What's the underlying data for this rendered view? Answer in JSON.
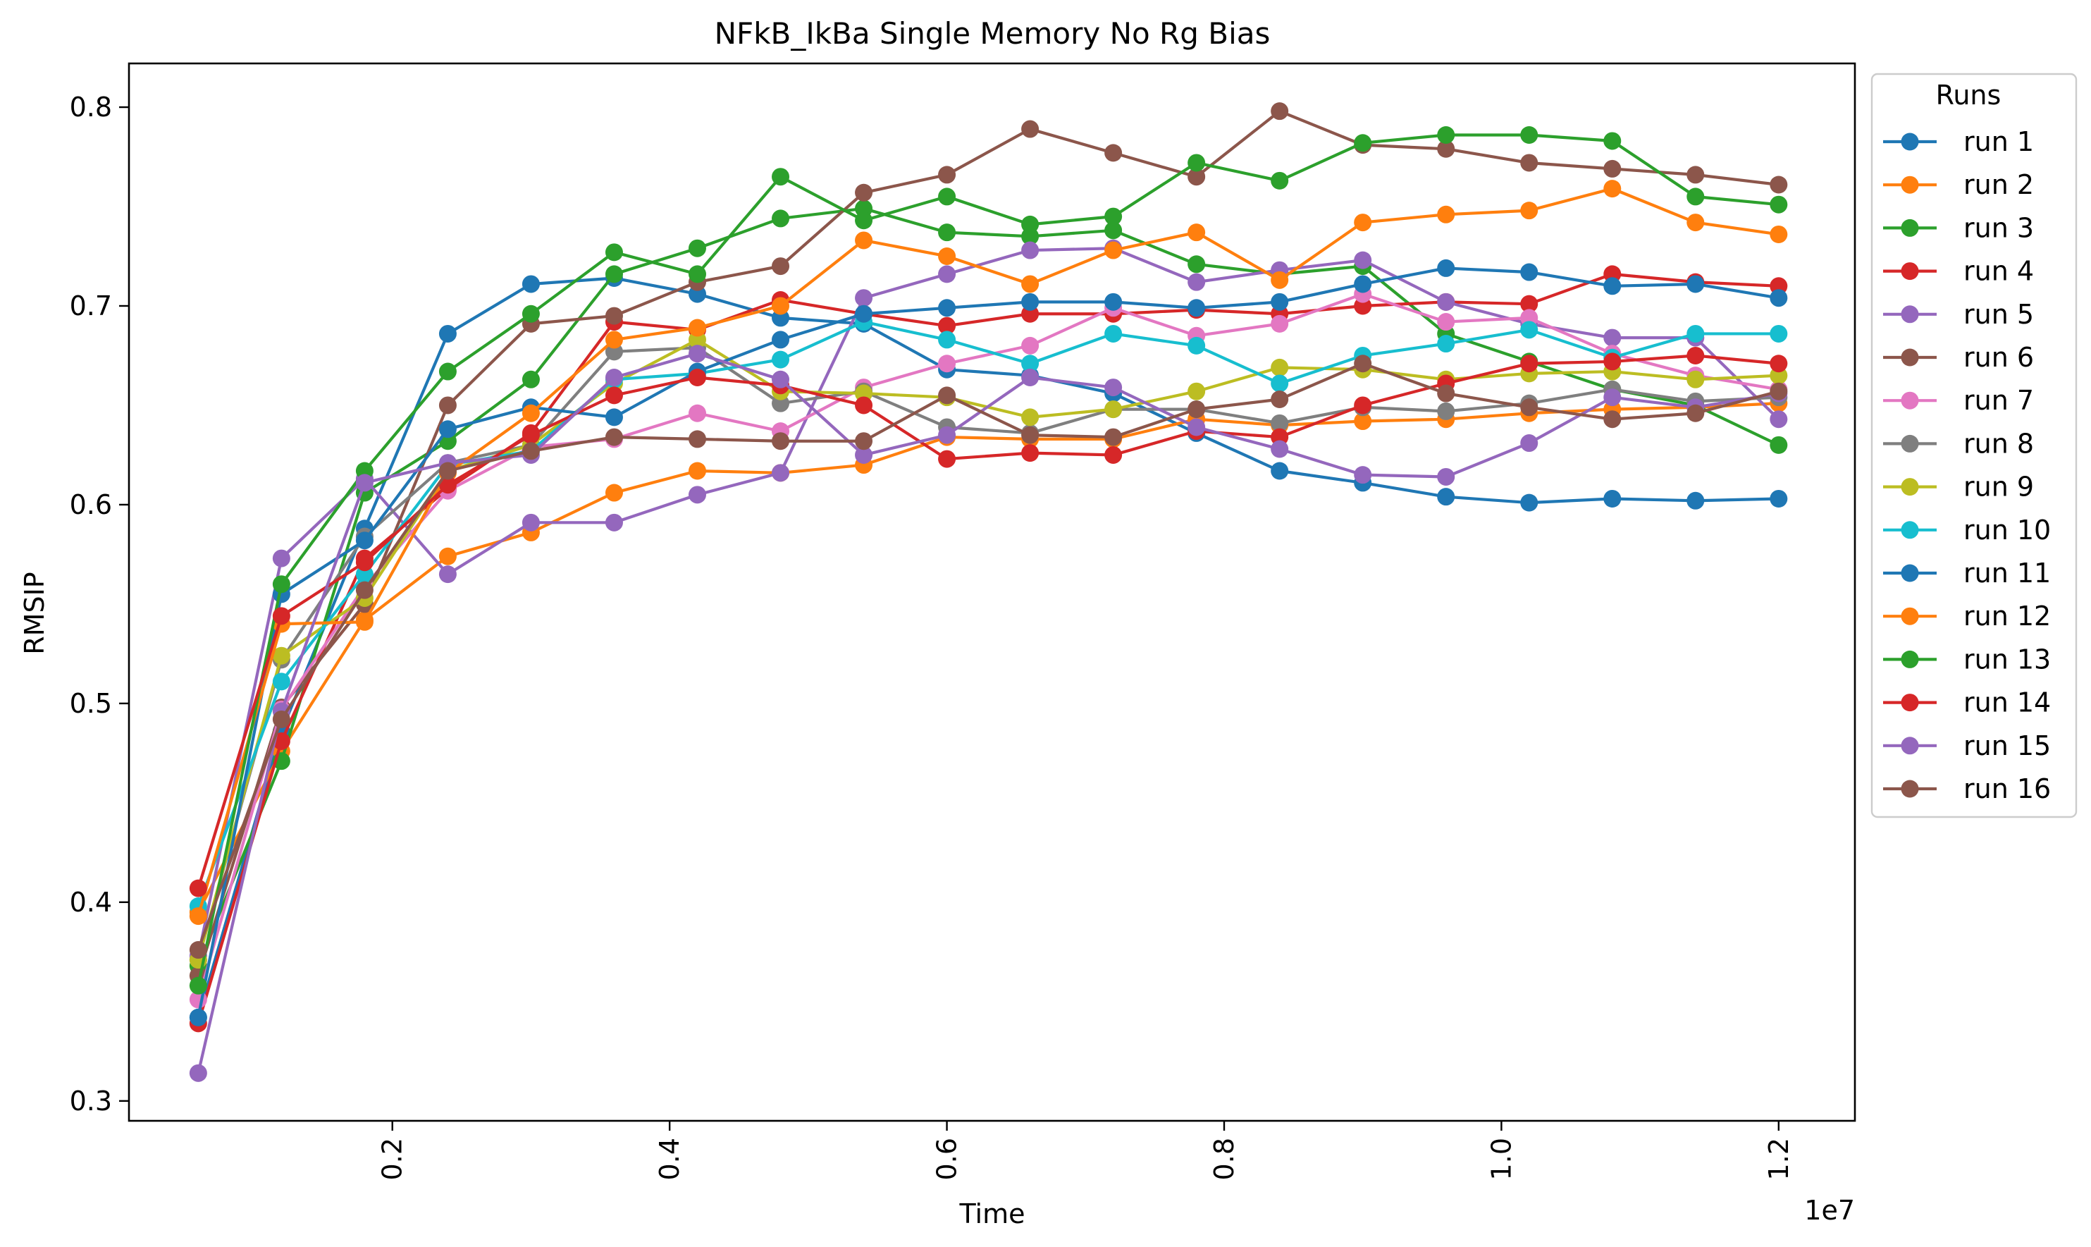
{
  "chart_data": {
    "type": "line",
    "title": "NFkB_IkBa Single Memory No Rg Bias",
    "xlabel": "Time",
    "ylabel": "RMSIP",
    "x_offset_text": "1e7",
    "xlim": [
      0.01,
      1.255
    ],
    "ylim": [
      0.29,
      0.822
    ],
    "x_ticks": [
      0.2,
      0.4,
      0.6,
      0.8,
      1.0,
      1.2
    ],
    "x_tick_labels": [
      "0.2",
      "0.4",
      "0.6",
      "0.8",
      "1.0",
      "1.2"
    ],
    "y_ticks": [
      0.3,
      0.4,
      0.5,
      0.6,
      0.7,
      0.8
    ],
    "y_tick_labels": [
      "0.3",
      "0.4",
      "0.5",
      "0.6",
      "0.7",
      "0.8"
    ],
    "grid": false,
    "legend": {
      "title": "Runs",
      "placement": "outside right, top"
    },
    "x": [
      0.06,
      0.12,
      0.18,
      0.24,
      0.3,
      0.36,
      0.42,
      0.48,
      0.54,
      0.6,
      0.66,
      0.72,
      0.78,
      0.84,
      0.9,
      0.96,
      1.02,
      1.08,
      1.14,
      1.2
    ],
    "series": [
      {
        "name": "run 1",
        "color": "#1f77b4",
        "values": [
          0.342,
          0.486,
          0.588,
          0.686,
          0.711,
          0.714,
          0.706,
          0.694,
          0.691,
          0.668,
          0.665,
          0.656,
          0.636,
          0.617,
          0.611,
          0.604,
          0.601,
          0.603,
          0.602,
          0.603
        ]
      },
      {
        "name": "run 2",
        "color": "#ff7f0e",
        "values": [
          0.395,
          0.476,
          0.542,
          0.574,
          0.586,
          0.606,
          0.617,
          0.616,
          0.62,
          0.634,
          0.633,
          0.633,
          0.643,
          0.64,
          0.642,
          0.643,
          0.646,
          0.648,
          0.649,
          0.651
        ]
      },
      {
        "name": "run 3",
        "color": "#2ca02c",
        "values": [
          0.368,
          0.471,
          0.606,
          0.632,
          0.663,
          0.716,
          0.729,
          0.744,
          0.749,
          0.737,
          0.735,
          0.738,
          0.721,
          0.716,
          0.72,
          0.686,
          0.672,
          0.658,
          0.65,
          0.63
        ]
      },
      {
        "name": "run 4",
        "color": "#d62728",
        "values": [
          0.339,
          0.481,
          0.573,
          0.608,
          0.636,
          0.692,
          0.688,
          0.703,
          0.696,
          0.69,
          0.696,
          0.696,
          0.698,
          0.696,
          0.7,
          0.702,
          0.701,
          0.716,
          0.712,
          0.71
        ]
      },
      {
        "name": "run 5",
        "color": "#9467bd",
        "values": [
          0.373,
          0.573,
          0.613,
          0.565,
          0.591,
          0.591,
          0.605,
          0.616,
          0.704,
          0.716,
          0.728,
          0.729,
          0.712,
          0.718,
          0.723,
          0.702,
          0.691,
          0.684,
          0.684,
          0.643
        ]
      },
      {
        "name": "run 6",
        "color": "#8c564b",
        "values": [
          0.363,
          0.498,
          0.55,
          0.65,
          0.691,
          0.695,
          0.712,
          0.72,
          0.757,
          0.766,
          0.789,
          0.777,
          0.765,
          0.798,
          0.781,
          0.779,
          0.772,
          0.769,
          0.766,
          0.761
        ]
      },
      {
        "name": "run 7",
        "color": "#e377c2",
        "values": [
          0.351,
          0.497,
          0.559,
          0.607,
          0.629,
          0.633,
          0.646,
          0.637,
          0.659,
          0.671,
          0.68,
          0.699,
          0.685,
          0.691,
          0.706,
          0.692,
          0.694,
          0.676,
          0.665,
          0.658
        ]
      },
      {
        "name": "run 8",
        "color": "#7f7f7f",
        "values": [
          0.371,
          0.522,
          0.584,
          0.621,
          0.63,
          0.677,
          0.679,
          0.651,
          0.657,
          0.639,
          0.636,
          0.648,
          0.648,
          0.641,
          0.649,
          0.647,
          0.651,
          0.658,
          0.652,
          0.654
        ]
      },
      {
        "name": "run 9",
        "color": "#bcbd22",
        "values": [
          0.371,
          0.524,
          0.553,
          0.617,
          0.63,
          0.661,
          0.683,
          0.657,
          0.656,
          0.654,
          0.644,
          0.648,
          0.657,
          0.669,
          0.668,
          0.663,
          0.666,
          0.667,
          0.663,
          0.665
        ]
      },
      {
        "name": "run 10",
        "color": "#17becf",
        "values": [
          0.398,
          0.511,
          0.565,
          0.62,
          0.627,
          0.663,
          0.666,
          0.673,
          0.692,
          0.683,
          0.671,
          0.686,
          0.68,
          0.661,
          0.675,
          0.681,
          0.688,
          0.674,
          0.686,
          0.686
        ]
      },
      {
        "name": "run 11",
        "color": "#1f77b4",
        "values": [
          0.342,
          0.555,
          0.582,
          0.638,
          0.649,
          0.644,
          0.667,
          0.683,
          0.696,
          0.699,
          0.702,
          0.702,
          0.699,
          0.702,
          0.711,
          0.719,
          0.717,
          0.71,
          0.711,
          0.704
        ]
      },
      {
        "name": "run 12",
        "color": "#ff7f0e",
        "values": [
          0.393,
          0.54,
          0.541,
          0.616,
          0.646,
          0.683,
          0.689,
          0.7,
          0.733,
          0.725,
          0.711,
          0.728,
          0.737,
          0.713,
          0.742,
          0.746,
          0.748,
          0.759,
          0.742,
          0.736
        ]
      },
      {
        "name": "run 13",
        "color": "#2ca02c",
        "values": [
          0.358,
          0.56,
          0.617,
          0.667,
          0.696,
          0.727,
          0.716,
          0.765,
          0.743,
          0.755,
          0.741,
          0.745,
          0.772,
          0.763,
          0.782,
          0.786,
          0.786,
          0.783,
          0.755,
          0.751
        ]
      },
      {
        "name": "run 14",
        "color": "#d62728",
        "values": [
          0.407,
          0.544,
          0.571,
          0.61,
          0.635,
          0.655,
          0.664,
          0.66,
          0.65,
          0.623,
          0.626,
          0.625,
          0.637,
          0.634,
          0.65,
          0.661,
          0.671,
          0.672,
          0.675,
          0.671
        ]
      },
      {
        "name": "run 15",
        "color": "#9467bd",
        "values": [
          0.314,
          0.496,
          0.611,
          0.621,
          0.625,
          0.664,
          0.676,
          0.663,
          0.625,
          0.635,
          0.664,
          0.659,
          0.639,
          0.628,
          0.615,
          0.614,
          0.631,
          0.654,
          0.649,
          0.656
        ]
      },
      {
        "name": "run 16",
        "color": "#8c564b",
        "values": [
          0.376,
          0.492,
          0.557,
          0.617,
          0.627,
          0.634,
          0.633,
          0.632,
          0.632,
          0.655,
          0.635,
          0.634,
          0.648,
          0.653,
          0.671,
          0.656,
          0.649,
          0.643,
          0.646,
          0.657
        ]
      }
    ]
  }
}
